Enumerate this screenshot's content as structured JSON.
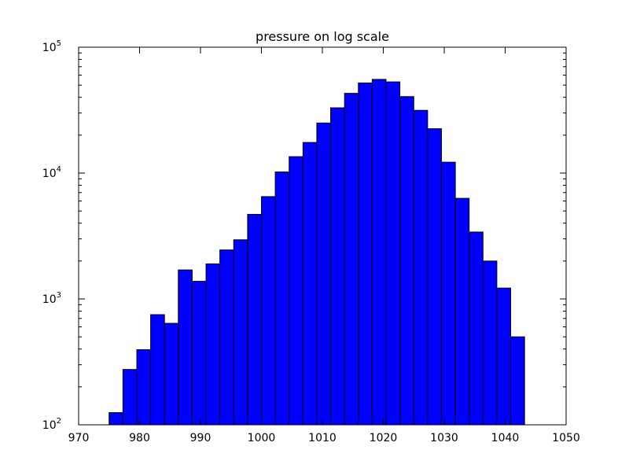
{
  "chart_data": {
    "type": "bar",
    "title": "pressure on log scale",
    "xlabel": "",
    "ylabel": "",
    "xlim": [
      970,
      1050
    ],
    "ylim": [
      100,
      100000
    ],
    "yscale": "log",
    "bar_color": "#0000ff",
    "bin_width": 2.27,
    "bins": [
      {
        "x0": 975.0,
        "value": 125
      },
      {
        "x0": 977.27,
        "value": 275
      },
      {
        "x0": 979.55,
        "value": 395
      },
      {
        "x0": 981.82,
        "value": 750
      },
      {
        "x0": 984.09,
        "value": 640
      },
      {
        "x0": 986.36,
        "value": 1700
      },
      {
        "x0": 988.64,
        "value": 1380
      },
      {
        "x0": 990.91,
        "value": 1900
      },
      {
        "x0": 993.18,
        "value": 2450
      },
      {
        "x0": 995.45,
        "value": 2950
      },
      {
        "x0": 997.73,
        "value": 4700
      },
      {
        "x0": 1000.0,
        "value": 6500
      },
      {
        "x0": 1002.27,
        "value": 10200
      },
      {
        "x0": 1004.55,
        "value": 13500
      },
      {
        "x0": 1006.82,
        "value": 17500
      },
      {
        "x0": 1009.09,
        "value": 25000
      },
      {
        "x0": 1011.36,
        "value": 33000
      },
      {
        "x0": 1013.64,
        "value": 43000
      },
      {
        "x0": 1015.91,
        "value": 52000
      },
      {
        "x0": 1018.18,
        "value": 55500
      },
      {
        "x0": 1020.45,
        "value": 53000
      },
      {
        "x0": 1022.73,
        "value": 40500
      },
      {
        "x0": 1025.0,
        "value": 31500
      },
      {
        "x0": 1027.27,
        "value": 22500
      },
      {
        "x0": 1029.55,
        "value": 12200
      },
      {
        "x0": 1031.82,
        "value": 6300
      },
      {
        "x0": 1034.09,
        "value": 3400
      },
      {
        "x0": 1036.36,
        "value": 2000
      },
      {
        "x0": 1038.64,
        "value": 1220
      },
      {
        "x0": 1040.91,
        "value": 500
      }
    ],
    "x_ticks": [
      "970",
      "980",
      "990",
      "1000",
      "1010",
      "1020",
      "1030",
      "1040",
      "1050"
    ],
    "y_ticks": [
      {
        "base": "10",
        "exp": "2",
        "value": 100
      },
      {
        "base": "10",
        "exp": "3",
        "value": 1000
      },
      {
        "base": "10",
        "exp": "4",
        "value": 10000
      },
      {
        "base": "10",
        "exp": "5",
        "value": 100000
      }
    ]
  }
}
